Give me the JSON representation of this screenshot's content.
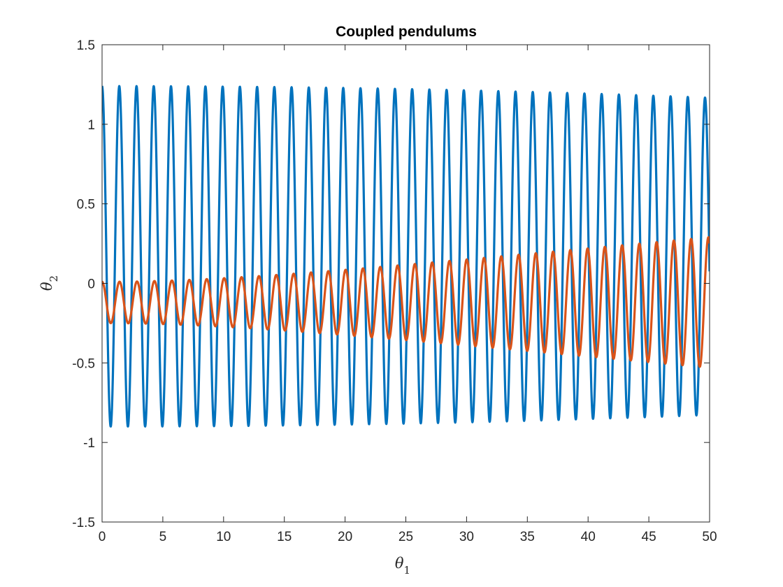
{
  "chart_data": {
    "type": "line",
    "title": "Coupled pendulums",
    "xlabel": "θ",
    "xlabel_sub": "1",
    "ylabel": "θ",
    "ylabel_sub": "2",
    "xlim": [
      0,
      50
    ],
    "ylim": [
      -1.5,
      1.5
    ],
    "x_ticks": [
      0,
      5,
      10,
      15,
      20,
      25,
      30,
      35,
      40,
      45,
      50
    ],
    "y_ticks": [
      -1.5,
      -1,
      -0.5,
      0,
      0.5,
      1,
      1.5
    ],
    "grid": false,
    "legend": "none",
    "series": [
      {
        "color": "#0072BD",
        "model": {
          "form": "offset + A*cos(w*x) + B*cos(w2*x + p2)",
          "offset": 0.17,
          "A": 0.6,
          "B": 0.47,
          "w": 4.425,
          "w2": 4.44,
          "p2": 0.0
        }
      },
      {
        "color": "#D95319",
        "model": {
          "form": "offset + A*cos(w*x) + B*cos(w2*x + p2)",
          "offset": -0.12,
          "A": 0.6,
          "B": 0.47,
          "w": 4.425,
          "w2": 4.44,
          "p2": 3.14159
        }
      }
    ]
  }
}
